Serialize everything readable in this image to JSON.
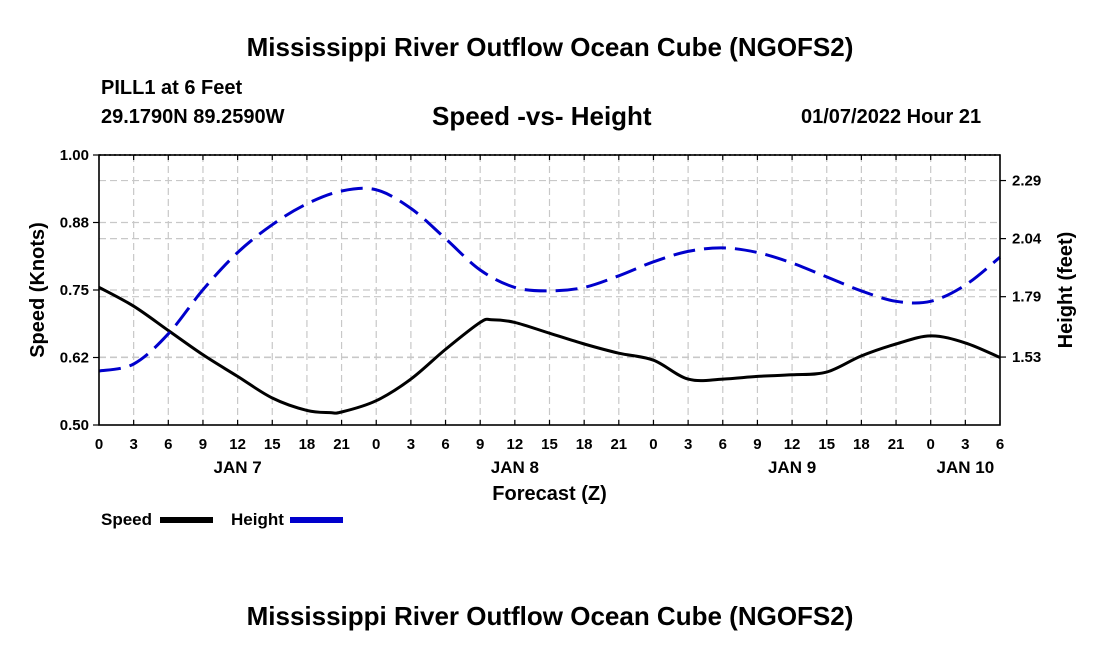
{
  "titles": {
    "main": "Mississippi River Outflow Ocean Cube (NGOFS2)",
    "bottom": "Mississippi River Outflow Ocean Cube (NGOFS2)"
  },
  "header": {
    "station": "PILL1 at 6 Feet",
    "coords": "29.1790N  89.2590W",
    "subtitle": "Speed -vs- Height",
    "datetime": "01/07/2022 Hour 21"
  },
  "legend": {
    "speed_label": "Speed",
    "height_label": "Height"
  },
  "colors": {
    "speed": "#000000",
    "height": "#0000cc",
    "grid": "#c8c8c8"
  },
  "chart_data": {
    "type": "line",
    "xlabel": "Forecast (Z)",
    "ylabel_left": "Speed (Knots)",
    "ylabel_right": "Height (feet)",
    "x_range_hours": [
      0,
      78
    ],
    "x_tick_labels": [
      "0",
      "3",
      "6",
      "9",
      "12",
      "15",
      "18",
      "21",
      "0",
      "3",
      "6",
      "9",
      "12",
      "15",
      "18",
      "21",
      "0",
      "3",
      "6",
      "9",
      "12",
      "15",
      "18",
      "21",
      "0",
      "3",
      "6"
    ],
    "day_labels": [
      {
        "label": "JAN 7",
        "hour": 12
      },
      {
        "label": "JAN 8",
        "hour": 36
      },
      {
        "label": "JAN 9",
        "hour": 60
      },
      {
        "label": "JAN 10",
        "hour": 75
      }
    ],
    "y_left": {
      "range": [
        0.5,
        1.0
      ],
      "ticks": [
        "1.00",
        "0.88",
        "0.75",
        "0.62",
        "0.50"
      ],
      "tick_values": [
        1.0,
        0.875,
        0.75,
        0.625,
        0.5
      ]
    },
    "y_right": {
      "range": [
        1.2375,
        2.4
      ],
      "ticks": [
        "2.29",
        "2.04",
        "1.79",
        "1.53"
      ],
      "tick_values": [
        2.29,
        2.04,
        1.79,
        1.53
      ]
    },
    "series": [
      {
        "name": "Speed",
        "axis": "left",
        "style": "solid",
        "x": [
          0,
          3,
          6,
          9,
          12,
          15,
          18,
          20,
          21,
          24,
          27,
          30,
          33,
          34,
          36,
          39,
          42,
          45,
          48,
          51,
          54,
          57,
          60,
          63,
          66,
          69,
          72,
          75,
          78
        ],
        "values": [
          0.755,
          0.72,
          0.675,
          0.63,
          0.59,
          0.55,
          0.527,
          0.523,
          0.524,
          0.545,
          0.585,
          0.64,
          0.69,
          0.695,
          0.69,
          0.67,
          0.65,
          0.633,
          0.62,
          0.585,
          0.585,
          0.59,
          0.593,
          0.598,
          0.628,
          0.65,
          0.665,
          0.652,
          0.625
        ]
      },
      {
        "name": "Height",
        "axis": "right",
        "style": "dashed",
        "x": [
          0,
          3,
          6,
          9,
          12,
          15,
          18,
          21,
          24,
          27,
          30,
          33,
          36,
          39,
          42,
          45,
          48,
          51,
          54,
          57,
          60,
          63,
          66,
          69,
          72,
          75,
          78
        ],
        "values": [
          1.47,
          1.5,
          1.63,
          1.82,
          1.98,
          2.1,
          2.19,
          2.245,
          2.25,
          2.17,
          2.04,
          1.905,
          1.83,
          1.815,
          1.83,
          1.88,
          1.94,
          1.985,
          2.0,
          1.98,
          1.935,
          1.875,
          1.815,
          1.77,
          1.77,
          1.84,
          1.96
        ]
      }
    ]
  }
}
